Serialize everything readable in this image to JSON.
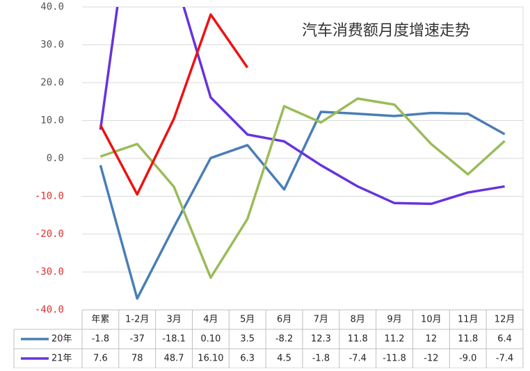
{
  "chart_data": {
    "type": "line",
    "title": "汽车消费额月度增速走势",
    "categories": [
      "年累",
      "1-2月",
      "3月",
      "4月",
      "5月",
      "6月",
      "7月",
      "8月",
      "9月",
      "10月",
      "11月",
      "12月"
    ],
    "series": [
      {
        "name": "20年",
        "color": "#4a7eb5",
        "values": [
          -1.8,
          -37,
          -18.1,
          0.1,
          3.5,
          -8.2,
          12.3,
          11.8,
          11.2,
          12,
          11.8,
          6.4
        ],
        "value_labels": [
          "-1.8",
          "-37",
          "-18.1",
          "0.10",
          "3.5",
          "-8.2",
          "12.3",
          "11.8",
          "11.2",
          "12",
          "11.8",
          "6.4"
        ]
      },
      {
        "name": "21年",
        "color": "#6633dd",
        "values": [
          7.6,
          78,
          48.7,
          16.1,
          6.3,
          4.5,
          -1.8,
          -7.4,
          -11.8,
          -12,
          -9.0,
          -7.4
        ],
        "value_labels": [
          "7.6",
          "78",
          "48.7",
          "16.10",
          "6.3",
          "4.5",
          "-1.8",
          "-7.4",
          "-11.8",
          "-12",
          "-9.0",
          "-7.4"
        ]
      },
      {
        "color": "#9bbb59",
        "values": [
          0.5,
          3.8,
          -7.5,
          -31.5,
          -16,
          13.8,
          9.5,
          15.8,
          14.2,
          3.8,
          -4.2,
          4.6
        ]
      },
      {
        "color": "#ee1111",
        "values": [
          8.8,
          -9.5,
          10.5,
          38,
          24,
          null,
          null,
          null,
          null,
          null,
          null,
          null
        ]
      }
    ],
    "ylim": [
      -40,
      40
    ],
    "yticks": [
      {
        "value": -40,
        "label": "-40.0"
      },
      {
        "value": -30,
        "label": "-30.0"
      },
      {
        "value": -20,
        "label": "-20.0"
      },
      {
        "value": -10,
        "label": "-10.0"
      },
      {
        "value": 0,
        "label": "0.0"
      },
      {
        "value": 10,
        "label": "10.0"
      },
      {
        "value": 20,
        "label": "20.0"
      },
      {
        "value": 30,
        "label": "30.0"
      },
      {
        "value": 40,
        "label": "40.0"
      }
    ],
    "grid": true,
    "negative_tick_color": "#e03030"
  }
}
